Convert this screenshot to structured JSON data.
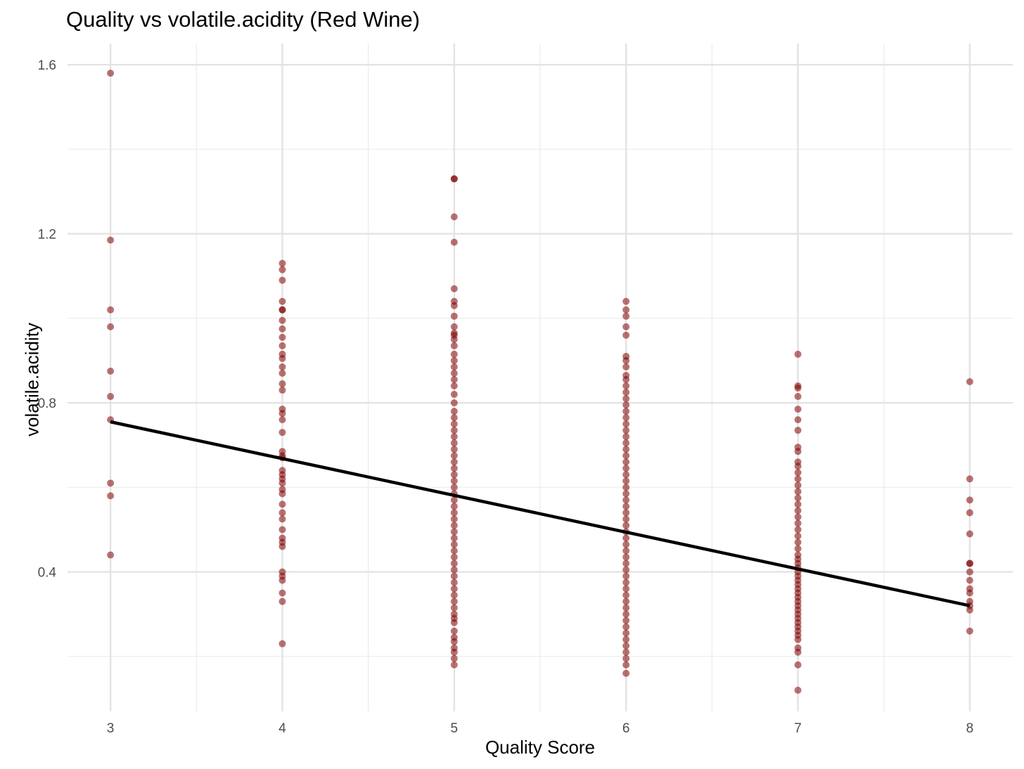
{
  "chart_data": {
    "type": "scatter",
    "title": "Quality vs volatile.acidity (Red Wine)",
    "xlabel": "Quality Score",
    "ylabel": "volatile.acidity",
    "xlim": [
      2.75,
      8.25
    ],
    "ylim": [
      0.07,
      1.65
    ],
    "x_ticks": [
      3,
      4,
      5,
      6,
      7,
      8
    ],
    "y_ticks": [
      0.4,
      0.8,
      1.2,
      1.6
    ],
    "y_tick_labels": [
      "0.4",
      "0.8",
      "1.2",
      "1.6"
    ],
    "x_tick_labels": [
      "3",
      "4",
      "5",
      "6",
      "7",
      "8"
    ],
    "grid": true,
    "point_color": "#800000",
    "trend_color": "#000000",
    "trend_line": {
      "x": [
        3,
        8
      ],
      "y": [
        0.755,
        0.32
      ]
    },
    "points": [
      {
        "x": 3,
        "y": [
          1.58,
          1.185,
          1.02,
          0.98,
          0.875,
          0.815,
          0.76,
          0.61,
          0.58,
          0.44
        ]
      },
      {
        "x": 4,
        "y": [
          1.13,
          1.115,
          1.09,
          1.04,
          1.02,
          1.02,
          0.995,
          0.975,
          0.955,
          0.935,
          0.915,
          0.905,
          0.885,
          0.87,
          0.845,
          0.83,
          0.785,
          0.775,
          0.76,
          0.73,
          0.685,
          0.675,
          0.67,
          0.64,
          0.63,
          0.62,
          0.61,
          0.595,
          0.585,
          0.56,
          0.54,
          0.525,
          0.5,
          0.48,
          0.47,
          0.46,
          0.4,
          0.39,
          0.38,
          0.35,
          0.33,
          0.23
        ]
      },
      {
        "x": 5,
        "y": [
          1.33,
          1.33,
          1.24,
          1.18,
          1.07,
          1.04,
          1.03,
          1.005,
          0.98,
          0.965,
          0.96,
          0.95,
          0.935,
          0.915,
          0.9,
          0.885,
          0.87,
          0.855,
          0.84,
          0.82,
          0.8,
          0.78,
          0.765,
          0.75,
          0.735,
          0.72,
          0.705,
          0.69,
          0.675,
          0.66,
          0.645,
          0.63,
          0.615,
          0.6,
          0.585,
          0.57,
          0.555,
          0.54,
          0.525,
          0.51,
          0.495,
          0.48,
          0.465,
          0.45,
          0.435,
          0.42,
          0.405,
          0.39,
          0.375,
          0.36,
          0.345,
          0.33,
          0.315,
          0.3,
          0.29,
          0.28,
          0.26,
          0.245,
          0.235,
          0.22,
          0.21,
          0.195,
          0.18
        ]
      },
      {
        "x": 6,
        "y": [
          1.04,
          1.02,
          1.005,
          0.98,
          0.96,
          0.91,
          0.9,
          0.885,
          0.865,
          0.855,
          0.84,
          0.825,
          0.81,
          0.795,
          0.78,
          0.765,
          0.75,
          0.735,
          0.72,
          0.705,
          0.69,
          0.675,
          0.66,
          0.645,
          0.63,
          0.615,
          0.6,
          0.585,
          0.57,
          0.555,
          0.54,
          0.525,
          0.51,
          0.495,
          0.48,
          0.465,
          0.45,
          0.435,
          0.42,
          0.405,
          0.39,
          0.375,
          0.36,
          0.345,
          0.33,
          0.315,
          0.3,
          0.285,
          0.27,
          0.255,
          0.24,
          0.225,
          0.21,
          0.195,
          0.18,
          0.16
        ]
      },
      {
        "x": 7,
        "y": [
          0.915,
          0.84,
          0.835,
          0.815,
          0.785,
          0.76,
          0.735,
          0.695,
          0.685,
          0.66,
          0.65,
          0.635,
          0.62,
          0.605,
          0.59,
          0.575,
          0.56,
          0.545,
          0.53,
          0.515,
          0.5,
          0.485,
          0.47,
          0.455,
          0.44,
          0.43,
          0.42,
          0.41,
          0.4,
          0.39,
          0.38,
          0.37,
          0.36,
          0.35,
          0.34,
          0.33,
          0.32,
          0.31,
          0.3,
          0.29,
          0.28,
          0.27,
          0.26,
          0.25,
          0.24,
          0.22,
          0.21,
          0.18,
          0.12
        ]
      },
      {
        "x": 8,
        "y": [
          0.85,
          0.62,
          0.57,
          0.54,
          0.49,
          0.42,
          0.42,
          0.4,
          0.38,
          0.36,
          0.35,
          0.33,
          0.32,
          0.31,
          0.26
        ]
      }
    ]
  }
}
